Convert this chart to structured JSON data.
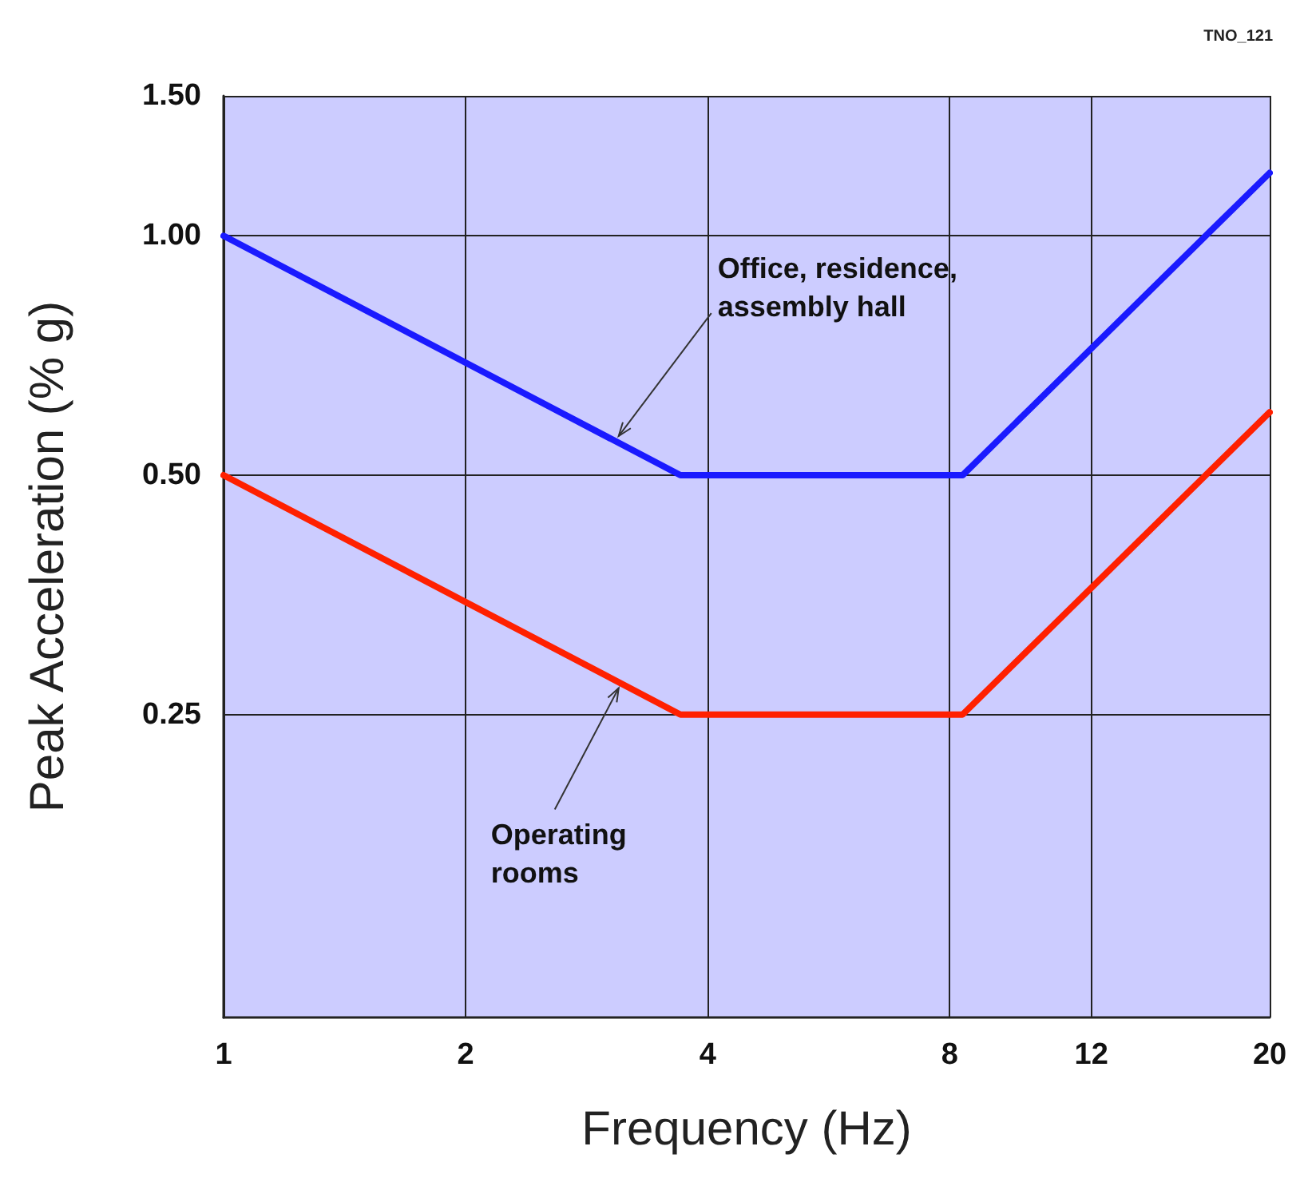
{
  "chart_data": {
    "type": "line",
    "xlabel": "Frequency (Hz)",
    "ylabel": "Peak Acceleration (% g)",
    "x": [
      1,
      3.7,
      8.3,
      20
    ],
    "series": [
      {
        "color": "#1a1aff",
        "values": [
          1.0,
          0.5,
          0.5,
          1.2
        ]
      },
      {
        "color": "#ff2000",
        "values": [
          0.5,
          0.25,
          0.25,
          0.6
        ]
      }
    ],
    "log": "xy",
    "xlim": [
      1,
      20
    ],
    "ylim": [
      0.104,
      1.5
    ],
    "xticks": [
      1,
      2,
      4,
      8,
      12,
      20
    ],
    "yticks": [
      {
        "value": 0.25,
        "label": "0.25"
      },
      {
        "value": 0.5,
        "label": "0.50"
      },
      {
        "value": 1,
        "label": "1.00"
      },
      {
        "value": 1.5,
        "label": "1.50"
      }
    ],
    "grid": true,
    "marker": "none",
    "line_style": "solid",
    "annotations": [
      {
        "text": "Office, residence,\nassembly hall",
        "x": 3.1,
        "y": 0.56
      },
      {
        "text": "Operating\nrooms",
        "x": 3.1,
        "y": 0.27
      },
      "TNO_121"
    ]
  }
}
